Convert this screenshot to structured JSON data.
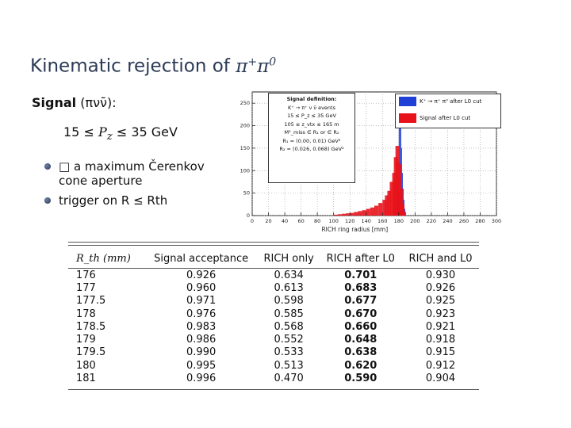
{
  "title": {
    "prefix": "Kinematic rejection of ",
    "particles": "π",
    "sup1": "+",
    "particle2": "π",
    "sup2": "0"
  },
  "signal": {
    "label": "Signal",
    "formula": " (πνν̄):"
  },
  "pz_range": "15 ≤ P_z ≤ 35 GeV",
  "pz": {
    "lower": "15 ≤ ",
    "var": "P",
    "sub": "z",
    "upper": " ≤ 35 GeV"
  },
  "bullets": [
    {
      "text": "□ a maximum Čerenkov cone aperture"
    },
    {
      "text": "trigger on R ≤ Rth"
    }
  ],
  "chart_data": {
    "type": "bar",
    "xlabel": "RICH ring radius [mm]",
    "xlim": [
      0,
      300
    ],
    "ylim": [
      0,
      275
    ],
    "xticks": [
      0,
      20,
      40,
      60,
      80,
      100,
      120,
      140,
      160,
      180,
      200,
      220,
      240,
      260,
      280,
      300
    ],
    "yticks": [
      0,
      50,
      100,
      150,
      200,
      250
    ],
    "series": [
      {
        "name": "K⁺ → π⁺ π⁰ after L0 cut",
        "color": "#1f3fd6",
        "bins": [
          [
            176,
            10
          ],
          [
            177,
            40
          ],
          [
            178,
            70
          ],
          [
            179,
            120
          ],
          [
            180,
            200
          ],
          [
            181,
            258
          ],
          [
            182,
            230
          ],
          [
            183,
            150
          ],
          [
            184,
            95
          ],
          [
            185,
            60
          ],
          [
            186,
            35
          ],
          [
            187,
            15
          ]
        ]
      },
      {
        "name": "Signal after L0 cut",
        "color": "#e8121b",
        "bins": [
          [
            100,
            2
          ],
          [
            105,
            3
          ],
          [
            110,
            4
          ],
          [
            115,
            5
          ],
          [
            120,
            6
          ],
          [
            125,
            8
          ],
          [
            130,
            10
          ],
          [
            135,
            12
          ],
          [
            140,
            15
          ],
          [
            145,
            18
          ],
          [
            150,
            22
          ],
          [
            155,
            28
          ],
          [
            160,
            35
          ],
          [
            163,
            45
          ],
          [
            166,
            55
          ],
          [
            169,
            75
          ],
          [
            172,
            95
          ],
          [
            174,
            130
          ],
          [
            176,
            155
          ],
          [
            178,
            115
          ],
          [
            180,
            60
          ],
          [
            182,
            25
          ],
          [
            184,
            8
          ]
        ]
      }
    ],
    "signal_definition": [
      "Signal definition:",
      "K⁺ → π⁺ ν ν̄ events",
      "15 ≤ P_z ≤ 35 GeV",
      "105 ≤ z_vtx ≤ 165 m",
      "M²_miss ∈ R₁ or ∈ R₂",
      "R₁ = (0.00, 0.01) GeV²",
      "R₂ = (0.026, 0.068) GeV²"
    ]
  },
  "table": {
    "headers": [
      "R_th (mm)",
      "Signal acceptance",
      "RICH only",
      "RICH after L0",
      "RICH and L0"
    ],
    "rows": [
      [
        "176",
        "0.926",
        "0.634",
        "0.701",
        "0.930"
      ],
      [
        "177",
        "0.960",
        "0.613",
        "0.683",
        "0.926"
      ],
      [
        "177.5",
        "0.971",
        "0.598",
        "0.677",
        "0.925"
      ],
      [
        "178",
        "0.976",
        "0.585",
        "0.670",
        "0.923"
      ],
      [
        "178.5",
        "0.983",
        "0.568",
        "0.660",
        "0.921"
      ],
      [
        "179",
        "0.986",
        "0.552",
        "0.648",
        "0.918"
      ],
      [
        "179.5",
        "0.990",
        "0.533",
        "0.638",
        "0.915"
      ],
      [
        "180",
        "0.995",
        "0.513",
        "0.620",
        "0.912"
      ],
      [
        "181",
        "0.996",
        "0.470",
        "0.590",
        "0.904"
      ]
    ]
  }
}
